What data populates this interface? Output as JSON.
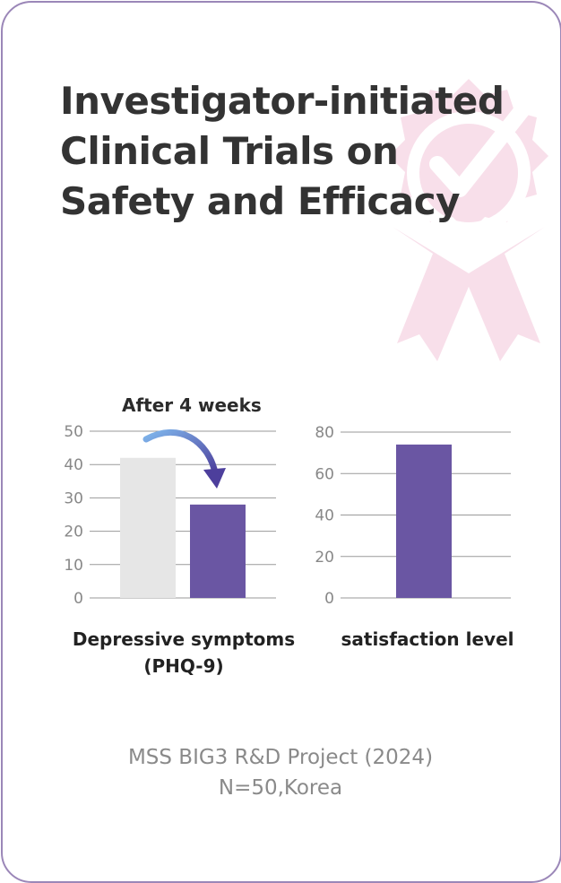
{
  "title": {
    "line1": "Investigator-initiated",
    "line2": "Clinical Trials on",
    "line3": "Safety and Efficacy"
  },
  "annotation": "After 4 weeks",
  "colors": {
    "before_bar": "#e6e6e6",
    "after_bar": "#6a56a3",
    "badge": "#f8dfea",
    "arrow_start": "#7fb6ec",
    "arrow_end": "#4d3f9c",
    "border": "#9b87b8",
    "grid": "#9a9a9a"
  },
  "icons": {
    "badge": "award-ribbon-check-icon",
    "arrow": "curved-arrow-icon"
  },
  "chart_data": [
    {
      "type": "bar",
      "categories": [
        "",
        ""
      ],
      "values": [
        42,
        28
      ],
      "xlabel": "Depressive symptoms (PHQ-9)",
      "xlabel_lines": [
        "Depressive symptoms",
        "(PHQ-9)"
      ],
      "ylim": [
        0,
        50
      ],
      "yticks": [
        0,
        10,
        20,
        30,
        40,
        50
      ],
      "grid": true,
      "annotation": "After 4 weeks"
    },
    {
      "type": "bar",
      "categories": [
        ""
      ],
      "values": [
        74
      ],
      "xlabel": "satisfaction level",
      "ylim": [
        0,
        80
      ],
      "yticks": [
        0,
        20,
        40,
        60,
        80
      ],
      "grid": true
    }
  ],
  "source": {
    "line1": "MSS BIG3 R&D Project (2024)",
    "line2": "N=50,Korea"
  }
}
